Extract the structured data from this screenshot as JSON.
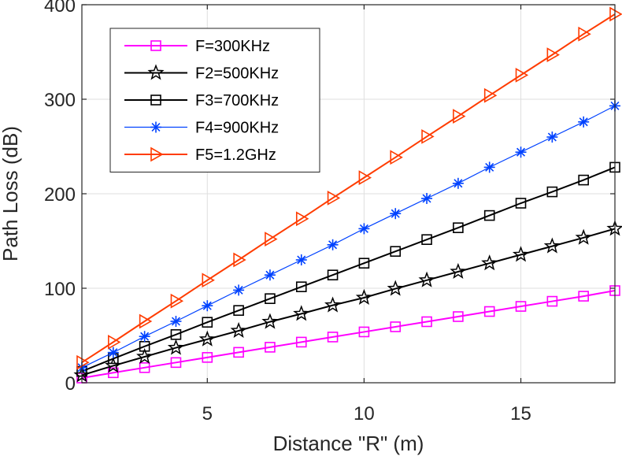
{
  "chart_data": {
    "type": "line",
    "title": "",
    "xlabel": "Distance \"R\" (m)",
    "ylabel": "Path Loss (dB)",
    "xlim": [
      1,
      18
    ],
    "ylim": [
      0,
      400
    ],
    "xticks": [
      5,
      10,
      15
    ],
    "yticks": [
      0,
      100,
      200,
      300,
      400
    ],
    "grid": true,
    "legend_position": "top-left",
    "x": [
      1,
      2,
      3,
      4,
      5,
      6,
      7,
      8,
      9,
      10,
      11,
      12,
      13,
      14,
      15,
      16,
      17,
      18
    ],
    "series": [
      {
        "name": "F=300KHz",
        "color": "#ff00ff",
        "marker": "square",
        "values": [
          5,
          10.6,
          16,
          21.4,
          26.8,
          32.2,
          37.6,
          43,
          48.4,
          53.8,
          59.2,
          64.6,
          70,
          75.4,
          80.8,
          86.2,
          91.6,
          97.5
        ]
      },
      {
        "name": "F2=500KHz",
        "color": "#000000",
        "marker": "star",
        "values": [
          8,
          18,
          27.5,
          37,
          46,
          55,
          64.5,
          73,
          82,
          90,
          99.5,
          108.5,
          117.5,
          126.5,
          135.5,
          144.5,
          153.5,
          163
        ]
      },
      {
        "name": "F3=700KHz",
        "color": "#000000",
        "marker": "square",
        "values": [
          12,
          25.5,
          38.5,
          51,
          64,
          76.5,
          89,
          101.5,
          114,
          126.5,
          139,
          151.5,
          164,
          177,
          190,
          202,
          214.5,
          228
        ]
      },
      {
        "name": "F4=900KHz",
        "color": "#0042ff",
        "marker": "asterisk",
        "values": [
          16,
          32,
          49,
          65,
          81.5,
          98,
          114,
          130,
          146,
          163,
          179,
          195,
          211,
          228,
          244,
          260,
          276,
          293
        ]
      },
      {
        "name": "F5=1.2GHz",
        "color": "#ff3c00",
        "marker": "triangle-right",
        "values": [
          21.5,
          43,
          65,
          86.5,
          108.5,
          130,
          152,
          173.5,
          195.5,
          217,
          238.5,
          260.5,
          282,
          304,
          325.5,
          347,
          369,
          390
        ]
      }
    ]
  }
}
